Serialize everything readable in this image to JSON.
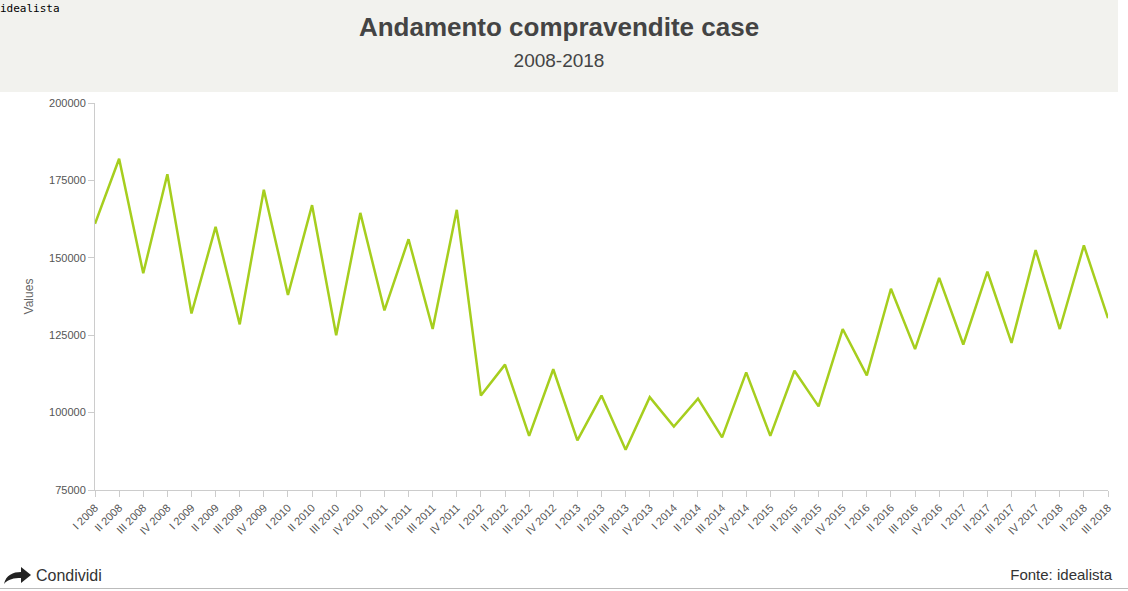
{
  "chart_data": {
    "type": "line",
    "title": "Andamento compravendite case",
    "subtitle": "2008-2018",
    "brand": "idealista",
    "share": "Condividi",
    "source": "Fonte: idealista",
    "y_label": "Values",
    "categories": [
      "I 2008",
      "II 2008",
      "III 2008",
      "IV 2008",
      "I 2009",
      "II 2009",
      "III 2009",
      "IV 2009",
      "I 2010",
      "II 2010",
      "III 2010",
      "IV 2010",
      "I 2011",
      "II 2011",
      "III 2011",
      "IV 2011",
      "I 2012",
      "II 2012",
      "III 2012",
      "IV 2012",
      "I 2013",
      "II 2013",
      "III 2013",
      "IV 2013",
      "I 2014",
      "II 2014",
      "III 2014",
      "IV 2014",
      "I 2015",
      "II 2015",
      "III 2015",
      "IV 2015",
      "I 2016",
      "II 2016",
      "III 2016",
      "IV 2016",
      "I 2017",
      "II 2017",
      "III 2017",
      "IV 2017",
      "I 2018",
      "II 2018",
      "III 2018"
    ],
    "values": [
      161000,
      182000,
      145000,
      177000,
      132000,
      160000,
      128500,
      172000,
      138000,
      167000,
      125000,
      164500,
      133000,
      156000,
      127000,
      165500,
      105500,
      115500,
      92500,
      114000,
      91000,
      105500,
      88000,
      105000,
      95500,
      104500,
      92000,
      113000,
      92500,
      113500,
      102000,
      127000,
      112000,
      140000,
      120500,
      143500,
      122000,
      145500,
      122500,
      152500,
      127000,
      154000,
      130500
    ],
    "color": "#a6ce1e",
    "ylim": [
      75000,
      200000
    ],
    "yticks": [
      75000,
      100000,
      125000,
      150000,
      175000,
      200000
    ],
    "grid": false
  }
}
